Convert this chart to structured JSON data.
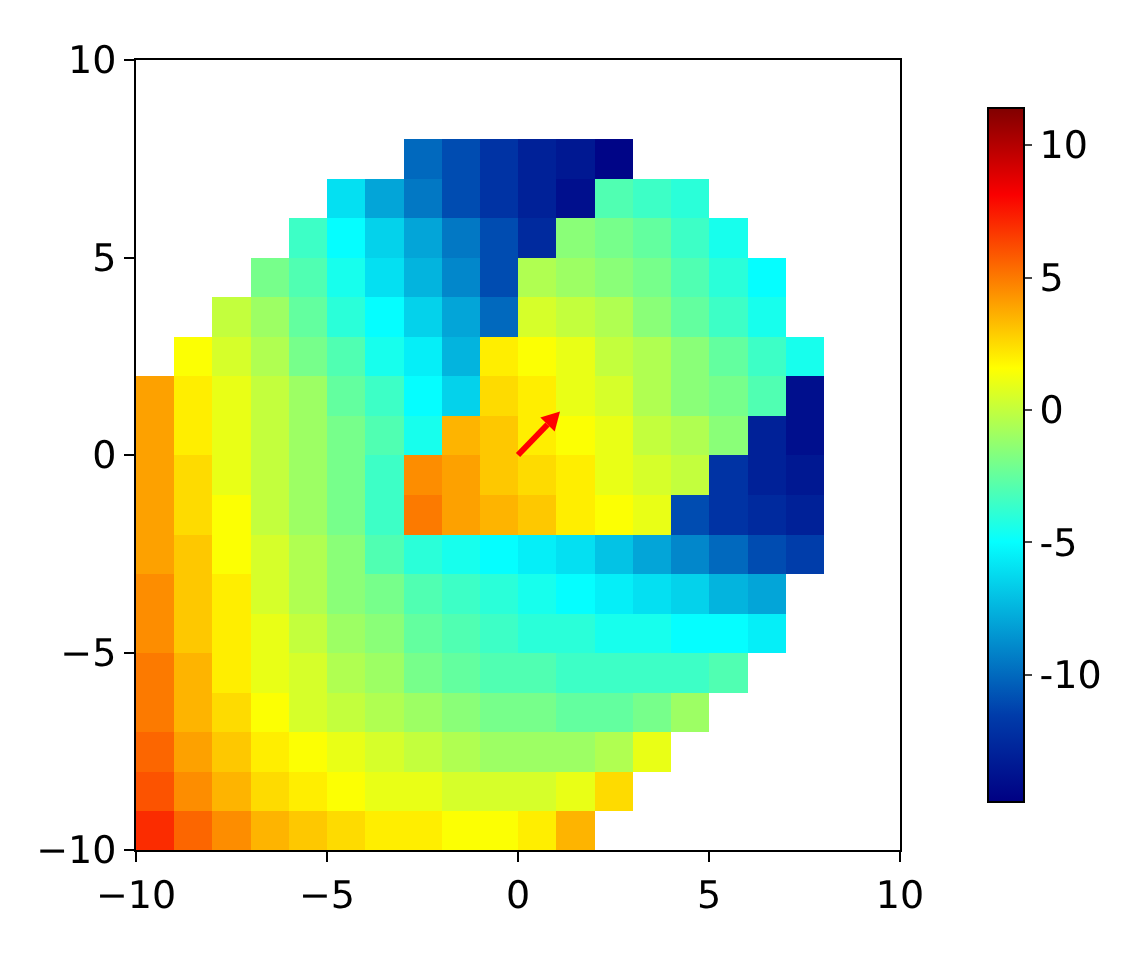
{
  "chart_data": {
    "type": "heatmap",
    "x": [
      -9.5,
      -8.5,
      -7.5,
      -6.5,
      -5.5,
      -4.5,
      -3.5,
      -2.5,
      -1.5,
      -0.5,
      0.5,
      1.5,
      2.5,
      3.5,
      4.5,
      5.5,
      6.5,
      7.5
    ],
    "y": [
      7.5,
      6.5,
      5.5,
      4.5,
      3.5,
      2.5,
      1.5,
      0.5,
      -0.5,
      -1.5,
      -2.5,
      -3.5,
      -4.5,
      -5.5,
      -6.5,
      -7.5,
      -8.5,
      -9.5
    ],
    "cells": [
      [
        null,
        null,
        null,
        null,
        null,
        null,
        null,
        -10,
        -11,
        -12,
        -13,
        -13.5,
        -14.5,
        null,
        null,
        null,
        null,
        null
      ],
      [
        null,
        null,
        null,
        null,
        null,
        -6,
        -8,
        -9.5,
        -11,
        -12,
        -13,
        -14,
        -3,
        -3.5,
        -4,
        null,
        null,
        null
      ],
      [
        null,
        null,
        null,
        null,
        -3.5,
        -5,
        -6.5,
        -8,
        -9.5,
        -11,
        -12.5,
        -1.5,
        -2,
        -2.5,
        -3.5,
        -4.5,
        null,
        null
      ],
      [
        null,
        null,
        null,
        -2,
        -3,
        -4.5,
        -6,
        -7.5,
        -9,
        -11,
        -0.5,
        -1,
        -1.5,
        -2,
        -3,
        -4,
        -5,
        null
      ],
      [
        null,
        null,
        0,
        -1,
        -2.5,
        -4,
        -5,
        -6.5,
        -8,
        -10,
        0.5,
        0,
        -0.5,
        -1.5,
        -2.5,
        -3.5,
        -4.5,
        null
      ],
      [
        null,
        1.5,
        0.5,
        -0.5,
        -2,
        -3,
        -4.5,
        -5.5,
        -7.5,
        2,
        1.5,
        1,
        0,
        -0.5,
        -1.5,
        -2.5,
        -3.5,
        -4.5
      ],
      [
        4,
        2,
        1,
        0,
        -1,
        -2.5,
        -3.5,
        -5,
        -6.5,
        2.5,
        2,
        1,
        0.5,
        -0.5,
        -1.5,
        -2,
        -3,
        -14
      ],
      [
        4,
        2,
        1,
        0,
        -1,
        -2,
        -3,
        -4.5,
        3.5,
        3,
        2,
        1.5,
        1,
        0,
        -0.5,
        -1.5,
        -13,
        -14
      ],
      [
        4,
        2.5,
        1,
        0,
        -1,
        -2,
        -3.5,
        4.5,
        4,
        3,
        2.5,
        2,
        1,
        0.5,
        0,
        -12,
        -13,
        -13.5
      ],
      [
        4,
        2.5,
        1.5,
        0,
        -1,
        -2,
        -3.5,
        5,
        4,
        3.5,
        3,
        2,
        1.5,
        1,
        -11,
        -12,
        -12.5,
        -13
      ],
      [
        4,
        3,
        1.5,
        0.5,
        -0.5,
        -1.5,
        -3,
        -4,
        -4.5,
        -5,
        -5.5,
        -6,
        -7,
        -8,
        -9,
        -10,
        -11,
        -11.5
      ],
      [
        4.5,
        3,
        2,
        0.5,
        -0.5,
        -1.5,
        -2,
        -3,
        -3.5,
        -4,
        -4.5,
        -5,
        -5.5,
        -6,
        -6.5,
        -7.5,
        -8,
        null
      ],
      [
        4.5,
        3,
        2,
        1,
        0,
        -1,
        -1.5,
        -2.5,
        -3,
        -3.5,
        -4,
        -4,
        -4.5,
        -4.5,
        -5,
        -5,
        -5.5,
        null
      ],
      [
        5,
        3.5,
        2,
        1,
        0.5,
        -0.5,
        -1,
        -2,
        -2.5,
        -3,
        -3,
        -3.5,
        -3.5,
        -3.5,
        -3.5,
        -3,
        null,
        null
      ],
      [
        5,
        3.5,
        2.5,
        1.5,
        0.5,
        0,
        -0.5,
        -1,
        -1.5,
        -2,
        -2,
        -2.5,
        -2.5,
        -2,
        -1,
        null,
        null,
        null
      ],
      [
        5.5,
        4,
        3,
        2,
        1.5,
        1,
        0.5,
        0,
        -0.5,
        -1,
        -1,
        -1,
        -0.5,
        1,
        null,
        null,
        null,
        null
      ],
      [
        6,
        4.5,
        3.5,
        2.5,
        2,
        1.5,
        1,
        1,
        0.5,
        0.5,
        0.5,
        1,
        2.5,
        null,
        null,
        null,
        null,
        null
      ],
      [
        7,
        5.5,
        4.5,
        3.5,
        3,
        2.5,
        2,
        2,
        1.5,
        1.5,
        2,
        3.5,
        null,
        null,
        null,
        null,
        null,
        null
      ]
    ],
    "xlim": [
      -10,
      10
    ],
    "ylim": [
      -10,
      10
    ],
    "xticks": [
      {
        "value": -10,
        "label": "−10"
      },
      {
        "value": -5,
        "label": "−5"
      },
      0,
      5,
      10
    ],
    "yticks": [
      {
        "value": -10,
        "label": "−10"
      },
      {
        "value": -5,
        "label": "−5"
      },
      0,
      5,
      10
    ],
    "clim": [
      -14.8,
      11.4
    ],
    "cticks": [
      -10,
      -5,
      0,
      5,
      10
    ],
    "grid": false
  }
}
